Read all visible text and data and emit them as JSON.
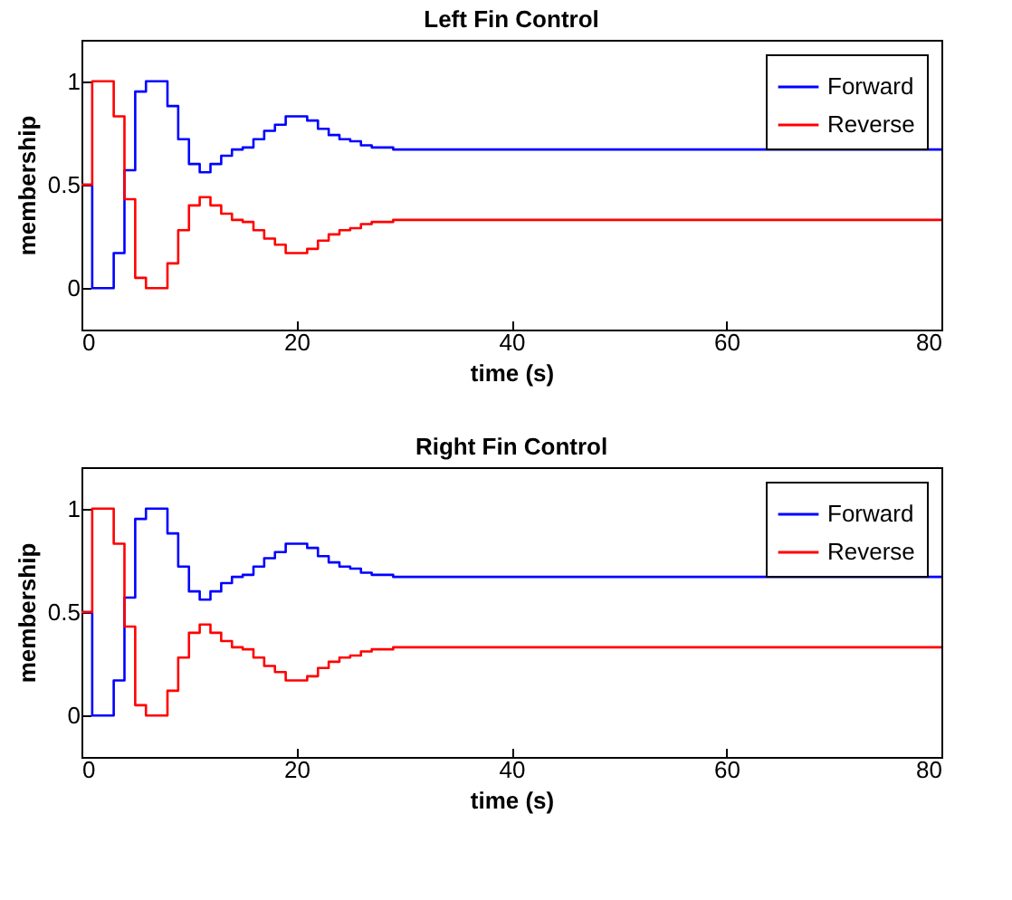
{
  "chart_data": [
    {
      "type": "step",
      "title": "Left Fin Control",
      "xlabel": "time (s)",
      "ylabel": "membership",
      "x": [
        0,
        1,
        2,
        3,
        4,
        5,
        6,
        7,
        8,
        9,
        10,
        11,
        12,
        13,
        14,
        15,
        16,
        17,
        18,
        19,
        20,
        21,
        22,
        23,
        24,
        25,
        26,
        27,
        28,
        29,
        80
      ],
      "series": [
        {
          "name": "Forward",
          "color": "#0000ff",
          "values": [
            0.5,
            0,
            0,
            0.17,
            0.57,
            0.95,
            1,
            1,
            0.88,
            0.72,
            0.6,
            0.56,
            0.6,
            0.64,
            0.67,
            0.68,
            0.72,
            0.76,
            0.79,
            0.83,
            0.83,
            0.81,
            0.77,
            0.74,
            0.72,
            0.71,
            0.69,
            0.68,
            0.68,
            0.67,
            0.67
          ]
        },
        {
          "name": "Reverse",
          "color": "#ff0000",
          "values": [
            0.5,
            1,
            1,
            0.83,
            0.43,
            0.05,
            0,
            0,
            0.12,
            0.28,
            0.4,
            0.44,
            0.4,
            0.36,
            0.33,
            0.32,
            0.28,
            0.24,
            0.21,
            0.17,
            0.17,
            0.19,
            0.23,
            0.26,
            0.28,
            0.29,
            0.31,
            0.32,
            0.32,
            0.33,
            0.33
          ]
        }
      ],
      "xlim": [
        0,
        80
      ],
      "xticks": [
        0,
        20,
        40,
        60,
        80
      ],
      "ylim": [
        -0.2,
        1.2
      ],
      "yticks": [
        0,
        0.5,
        1
      ],
      "legend": "top right",
      "grid": false
    },
    {
      "type": "step",
      "title": "Right Fin Control",
      "xlabel": "time (s)",
      "ylabel": "membership",
      "x": [
        0,
        1,
        2,
        3,
        4,
        5,
        6,
        7,
        8,
        9,
        10,
        11,
        12,
        13,
        14,
        15,
        16,
        17,
        18,
        19,
        20,
        21,
        22,
        23,
        24,
        25,
        26,
        27,
        28,
        29,
        80
      ],
      "series": [
        {
          "name": "Forward",
          "color": "#0000ff",
          "values": [
            0.5,
            0,
            0,
            0.17,
            0.57,
            0.95,
            1,
            1,
            0.88,
            0.72,
            0.6,
            0.56,
            0.6,
            0.64,
            0.67,
            0.68,
            0.72,
            0.76,
            0.79,
            0.83,
            0.83,
            0.81,
            0.77,
            0.74,
            0.72,
            0.71,
            0.69,
            0.68,
            0.68,
            0.67,
            0.67
          ]
        },
        {
          "name": "Reverse",
          "color": "#ff0000",
          "values": [
            0.5,
            1,
            1,
            0.83,
            0.43,
            0.05,
            0,
            0,
            0.12,
            0.28,
            0.4,
            0.44,
            0.4,
            0.36,
            0.33,
            0.32,
            0.28,
            0.24,
            0.21,
            0.17,
            0.17,
            0.19,
            0.23,
            0.26,
            0.28,
            0.29,
            0.31,
            0.32,
            0.32,
            0.33,
            0.33
          ]
        }
      ],
      "xlim": [
        0,
        80
      ],
      "xticks": [
        0,
        20,
        40,
        60,
        80
      ],
      "ylim": [
        -0.2,
        1.2
      ],
      "yticks": [
        0,
        0.5,
        1
      ],
      "legend": "top right",
      "grid": false
    }
  ]
}
